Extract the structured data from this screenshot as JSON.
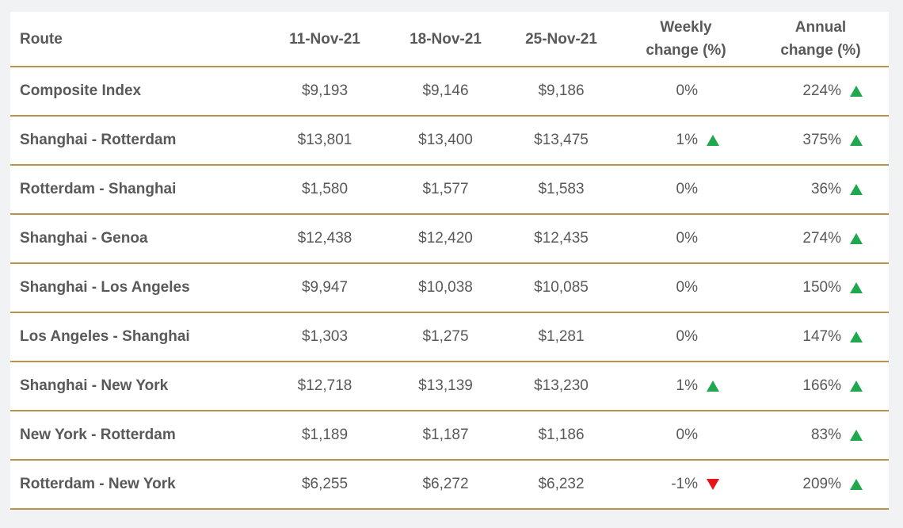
{
  "table": {
    "headers": [
      "Route",
      "11-Nov-21",
      "18-Nov-21",
      "25-Nov-21",
      "Weekly change (%)",
      "Annual change (%)"
    ],
    "rows": [
      [
        "Composite Index",
        "$9,193",
        "$9,146",
        "$9,186",
        "0%",
        "224%"
      ],
      [
        "Shanghai - Rotterdam",
        "$13,801",
        "$13,400",
        "$13,475",
        "1%",
        "375%"
      ],
      [
        "Rotterdam - Shanghai",
        "$1,580",
        "$1,577",
        "$1,583",
        "0%",
        "36%"
      ],
      [
        "Shanghai - Genoa",
        "$12,438",
        "$12,420",
        "$12,435",
        "0%",
        "274%"
      ],
      [
        "Shanghai - Los Angeles",
        "$9,947",
        "$10,038",
        "$10,085",
        "0%",
        "150%"
      ],
      [
        "Los Angeles - Shanghai",
        "$1,303",
        "$1,275",
        "$1,281",
        "0%",
        "147%"
      ],
      [
        "Shanghai - New York",
        "$12,718",
        "$13,139",
        "$13,230",
        "1%",
        "166%"
      ],
      [
        "New York - Rotterdam",
        "$1,189",
        "$1,187",
        "$1,186",
        "0%",
        "83%"
      ],
      [
        "Rotterdam - New York",
        "$6,255",
        "$6,272",
        "$6,232",
        "-1%",
        "209%"
      ]
    ]
  }
}
